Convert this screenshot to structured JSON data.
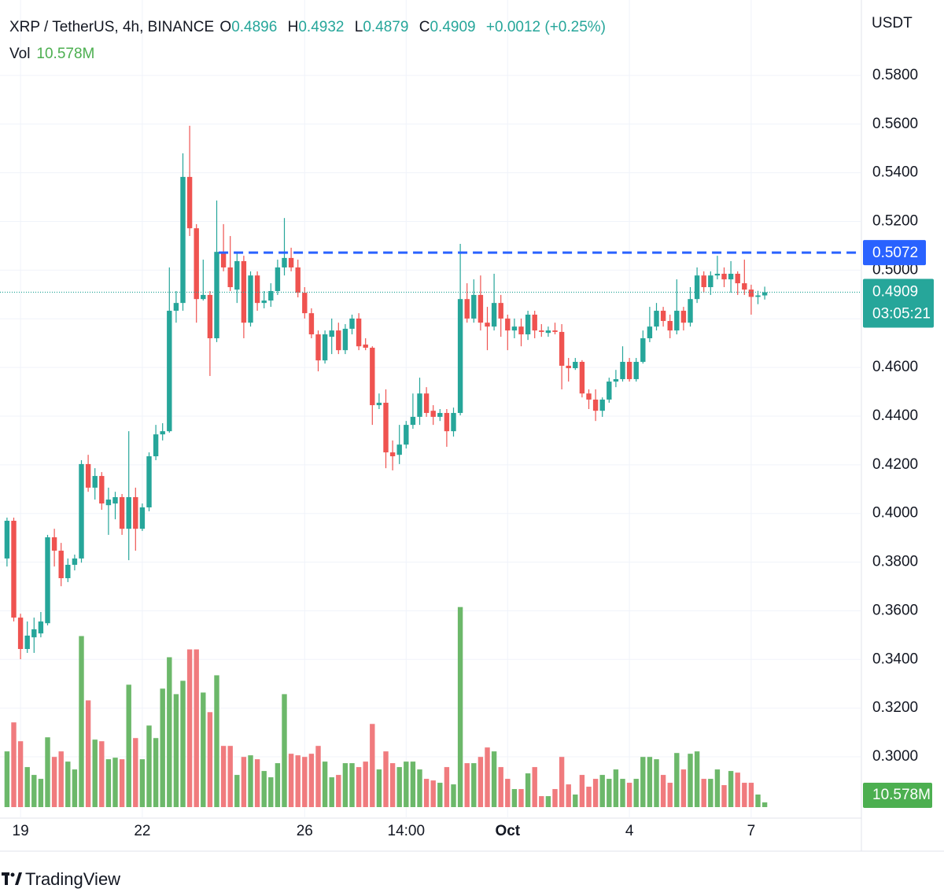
{
  "chart_data": {
    "type": "candlestick",
    "symbol_title": "XRP / TetherUS, 4h, BINANCE",
    "ohlc_labels": [
      "O",
      "H",
      "L",
      "C"
    ],
    "change_label": "+0.0012 (+0.25%)",
    "volume_title": "Vol",
    "volume_value_label": "10.578M",
    "currency": "USDT",
    "countdown": "03:05:21",
    "brand": "TradingView",
    "up_color": "#26a69a",
    "down_color": "#ef5350",
    "volume_up_color": "#6cb86a",
    "volume_down_color": "#f07b7e",
    "level": {
      "value": 0.5072,
      "from_x": 31.3,
      "color": "#2962ff"
    },
    "grid": true,
    "xlim": [
      -1.035,
      126.29
    ],
    "xticks": [
      {
        "value": 2,
        "label": "19"
      },
      {
        "value": 20,
        "label": "22"
      },
      {
        "value": 44,
        "label": "26"
      },
      {
        "value": 59,
        "label": "14:00"
      },
      {
        "value": 74,
        "label": "Oct"
      },
      {
        "value": 92,
        "label": "4"
      },
      {
        "value": 110,
        "label": "7"
      }
    ],
    "ylim": [
      0.2748,
      0.611
    ],
    "yticks": [
      {
        "value": 0.58,
        "label": "0.5800"
      },
      {
        "value": 0.56,
        "label": "0.5600"
      },
      {
        "value": 0.54,
        "label": "0.5400"
      },
      {
        "value": 0.52,
        "label": "0.5200"
      },
      {
        "value": 0.5,
        "label": "0.5000"
      },
      {
        "value": 0.48,
        "label": "0.4800"
      },
      {
        "value": 0.46,
        "label": "0.4600"
      },
      {
        "value": 0.44,
        "label": "0.4400"
      },
      {
        "value": 0.42,
        "label": "0.4200"
      },
      {
        "value": 0.4,
        "label": "0.4000"
      },
      {
        "value": 0.38,
        "label": "0.3800"
      },
      {
        "value": 0.36,
        "label": "0.3600"
      },
      {
        "value": 0.34,
        "label": "0.3400"
      },
      {
        "value": 0.32,
        "label": "0.3200"
      },
      {
        "value": 0.3,
        "label": "0.3000"
      }
    ],
    "volume_ylim": [
      0,
      480
    ],
    "open": [
      0.3815,
      0.397,
      0.3572,
      0.3443,
      0.3491,
      0.3507,
      0.3549,
      0.3902,
      0.3847,
      0.3734,
      0.3789,
      0.3815,
      0.4203,
      0.4106,
      0.4154,
      0.4034,
      0.4041,
      0.4067,
      0.3937,
      0.4067,
      0.3937,
      0.4025,
      0.4235,
      0.4325,
      0.4338,
      0.4833,
      0.4865,
      0.5383,
      0.5172,
      0.4881,
      0.4898,
      0.472,
      0.5075,
      0.5011,
      0.492,
      0.5037,
      0.4784,
      0.4978,
      0.4865,
      0.4875,
      0.4914,
      0.5011,
      0.505,
      0.5011,
      0.4907,
      0.4823,
      0.4736,
      0.4629,
      0.4726,
      0.4752,
      0.4671,
      0.4759,
      0.4801,
      0.4694,
      0.4681,
      0.4445,
      0.4455,
      0.4251,
      0.4241,
      0.4283,
      0.4364,
      0.4397,
      0.4493,
      0.4422,
      0.4397,
      0.4413,
      0.4338,
      0.4413,
      0.4881,
      0.4801,
      0.4898,
      0.4784,
      0.4768,
      0.4865,
      0.4801,
      0.4752,
      0.4768,
      0.4736,
      0.4817,
      0.4752,
      0.4742,
      0.4752,
      0.4746,
      0.4607,
      0.4597,
      0.4623,
      0.4493,
      0.4468,
      0.4422,
      0.4468,
      0.4542,
      0.4552,
      0.4623,
      0.4552,
      0.4623,
      0.472,
      0.4768,
      0.4833,
      0.4791,
      0.4752,
      0.4833,
      0.4784,
      0.4881,
      0.4978,
      0.493,
      0.4978,
      0.4985,
      0.4962,
      0.4985,
      0.4946,
      0.492,
      0.489,
      0.4896
    ],
    "high": [
      0.3983,
      0.3983,
      0.3588,
      0.3556,
      0.3572,
      0.3595,
      0.3912,
      0.3937,
      0.3879,
      0.3815,
      0.3831,
      0.4219,
      0.4241,
      0.4186,
      0.417,
      0.4106,
      0.4089,
      0.408,
      0.4338,
      0.4106,
      0.4041,
      0.4251,
      0.4364,
      0.4371,
      0.5011,
      0.4914,
      0.548,
      0.5593,
      0.5189,
      0.5043,
      0.4914,
      0.5286,
      0.5189,
      0.514,
      0.5075,
      0.5059,
      0.4995,
      0.4995,
      0.4914,
      0.4946,
      0.5043,
      0.5214,
      0.5092,
      0.5043,
      0.493,
      0.4843,
      0.4752,
      0.4752,
      0.4801,
      0.4784,
      0.4778,
      0.4817,
      0.4823,
      0.472,
      0.4687,
      0.4493,
      0.451,
      0.43,
      0.4364,
      0.438,
      0.4493,
      0.4558,
      0.4519,
      0.4445,
      0.4429,
      0.4429,
      0.4435,
      0.5108,
      0.4946,
      0.4962,
      0.4978,
      0.4849,
      0.4985,
      0.4898,
      0.4817,
      0.4801,
      0.4801,
      0.4833,
      0.4833,
      0.4778,
      0.4768,
      0.4784,
      0.4778,
      0.4639,
      0.4639,
      0.463,
      0.451,
      0.451,
      0.4477,
      0.4558,
      0.459,
      0.4687,
      0.4639,
      0.4639,
      0.4752,
      0.4849,
      0.4865,
      0.4849,
      0.4817,
      0.4962,
      0.4849,
      0.493,
      0.5011,
      0.4995,
      0.4995,
      0.5059,
      0.5011,
      0.5037,
      0.4995,
      0.5043,
      0.494,
      0.4915,
      0.4932
    ],
    "low": [
      0.3782,
      0.3556,
      0.3401,
      0.3427,
      0.3427,
      0.3491,
      0.354,
      0.3782,
      0.3701,
      0.3718,
      0.3766,
      0.3798,
      0.4089,
      0.4057,
      0.4015,
      0.3912,
      0.3976,
      0.3912,
      0.3808,
      0.3847,
      0.3928,
      0.4009,
      0.4219,
      0.43,
      0.4332,
      0.4784,
      0.4833,
      0.514,
      0.4784,
      0.4875,
      0.4565,
      0.4704,
      0.4995,
      0.4914,
      0.4865,
      0.472,
      0.4768,
      0.4833,
      0.4843,
      0.4849,
      0.4898,
      0.4978,
      0.4995,
      0.4888,
      0.4801,
      0.472,
      0.4584,
      0.4616,
      0.4655,
      0.4655,
      0.4655,
      0.4736,
      0.4671,
      0.4671,
      0.4364,
      0.4429,
      0.4186,
      0.4177,
      0.4203,
      0.4267,
      0.4348,
      0.4364,
      0.4397,
      0.4364,
      0.438,
      0.4274,
      0.4316,
      0.4403,
      0.4784,
      0.4784,
      0.4752,
      0.4671,
      0.4752,
      0.4726,
      0.4671,
      0.472,
      0.4687,
      0.4713,
      0.472,
      0.4726,
      0.4726,
      0.4736,
      0.451,
      0.4542,
      0.459,
      0.4477,
      0.4429,
      0.438,
      0.4397,
      0.4455,
      0.4519,
      0.4542,
      0.4542,
      0.4542,
      0.4616,
      0.4704,
      0.4752,
      0.4768,
      0.472,
      0.4736,
      0.4752,
      0.4768,
      0.4865,
      0.4907,
      0.4898,
      0.4962,
      0.493,
      0.4907,
      0.4898,
      0.4898,
      0.4817,
      0.486,
      0.4879
    ],
    "close": [
      0.397,
      0.3572,
      0.3443,
      0.3498,
      0.3524,
      0.3556,
      0.3902,
      0.3847,
      0.3734,
      0.3789,
      0.3815,
      0.4203,
      0.4106,
      0.4154,
      0.4041,
      0.4057,
      0.4067,
      0.3937,
      0.4067,
      0.3937,
      0.4025,
      0.4235,
      0.4325,
      0.4338,
      0.4833,
      0.4865,
      0.5383,
      0.5172,
      0.4881,
      0.4898,
      0.472,
      0.5075,
      0.5011,
      0.493,
      0.5037,
      0.4784,
      0.4978,
      0.4865,
      0.4875,
      0.4914,
      0.5011,
      0.505,
      0.5011,
      0.4907,
      0.4823,
      0.4736,
      0.4629,
      0.4736,
      0.4752,
      0.4671,
      0.4759,
      0.4801,
      0.4687,
      0.4681,
      0.4445,
      0.4455,
      0.4251,
      0.4235,
      0.4283,
      0.4364,
      0.4397,
      0.4493,
      0.4413,
      0.4397,
      0.4413,
      0.4338,
      0.4413,
      0.4881,
      0.4801,
      0.4898,
      0.4784,
      0.4768,
      0.4865,
      0.4801,
      0.4752,
      0.4768,
      0.4736,
      0.4817,
      0.4752,
      0.4746,
      0.4752,
      0.4746,
      0.4607,
      0.4597,
      0.4623,
      0.4493,
      0.4468,
      0.4422,
      0.4468,
      0.4542,
      0.4552,
      0.4623,
      0.4552,
      0.4623,
      0.472,
      0.4768,
      0.4833,
      0.4791,
      0.4752,
      0.4833,
      0.4784,
      0.4881,
      0.4978,
      0.493,
      0.4978,
      0.4985,
      0.4962,
      0.4985,
      0.4946,
      0.492,
      0.489,
      0.4896,
      0.4909
    ],
    "volume": [
      125.0,
      190.1,
      147.8,
      89.8,
      72.2,
      63.4,
      156.6,
      112.6,
      125.0,
      102.1,
      84.5,
      383.7,
      239.4,
      151.4,
      147.8,
      107.4,
      110.9,
      107.4,
      274.6,
      154.9,
      107.4,
      183.0,
      154.9,
      265.8,
      336.2,
      253.4,
      283.4,
      353.8,
      353.8,
      257.0,
      213.0,
      295.7,
      137.3,
      137.3,
      72.2,
      112.6,
      116.2,
      107.4,
      81.0,
      66.9,
      98.6,
      253.4,
      119.7,
      116.2,
      112.6,
      119.7,
      137.3,
      102.1,
      66.9,
      72.2,
      98.6,
      98.6,
      89.8,
      102.1,
      186.6,
      84.5,
      125.0,
      98.6,
      89.8,
      102.1,
      102.1,
      84.5,
      63.4,
      59.8,
      54.6,
      89.8,
      51.0,
      448.8,
      98.6,
      98.6,
      112.6,
      133.8,
      125.0,
      89.8,
      63.4,
      40.5,
      40.5,
      75.7,
      89.8,
      24.6,
      24.6,
      40.5,
      112.6,
      51.0,
      28.2,
      72.2,
      45.8,
      63.4,
      72.2,
      63.4,
      84.5,
      63.4,
      54.6,
      63.4,
      112.6,
      112.6,
      107.4,
      72.2,
      54.6,
      121.4,
      84.5,
      119.7,
      125.0,
      63.4,
      63.4,
      84.5,
      49.3,
      81.0,
      77.4,
      54.6,
      54.6,
      28.2,
      10.578
    ]
  }
}
